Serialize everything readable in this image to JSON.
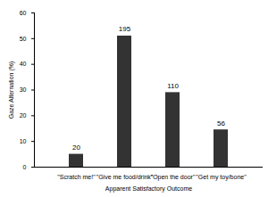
{
  "chart_data": {
    "type": "bar",
    "x_label": "Apparent Satisfactory Outcome",
    "y_label": "Gaze Alternation (%)",
    "categories": [
      "\"Scratch me!\"",
      "\"Give me food/drink\"",
      "\"Open the door\"",
      "\"Get my toy/bone\""
    ],
    "values": [
      5,
      51,
      29,
      14.5
    ],
    "counts": [
      20,
      195,
      110,
      56
    ],
    "color": "#333333",
    "ylim": [
      0,
      60
    ],
    "yticks": [
      0,
      10,
      20,
      30,
      40,
      50,
      60
    ],
    "grid": false
  }
}
